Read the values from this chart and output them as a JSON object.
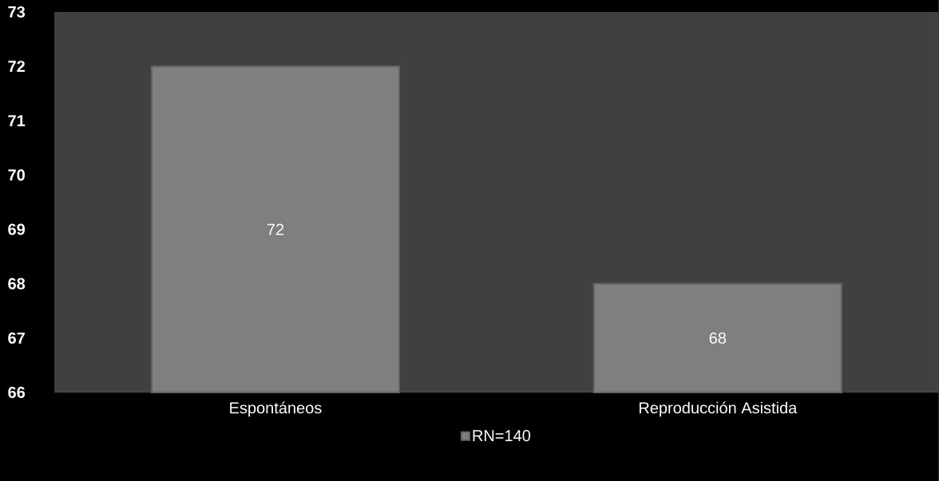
{
  "chart_data": {
    "type": "bar",
    "categories": [
      "Espontáneos",
      "Reproducción Asistida"
    ],
    "series": [
      {
        "name": "RN=140",
        "color": "#7f7f7f",
        "values": [
          72,
          68
        ]
      }
    ],
    "ylim": [
      66,
      73
    ],
    "yticks": [
      66,
      67,
      68,
      69,
      70,
      71,
      72,
      73
    ],
    "data_labels": true,
    "legend": "bottom",
    "grid": false
  }
}
